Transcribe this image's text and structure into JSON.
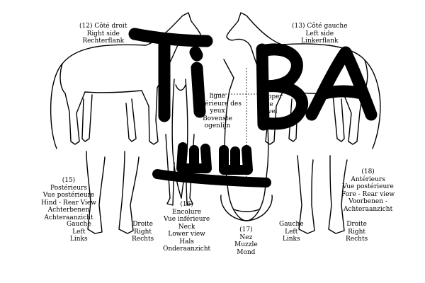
{
  "labels": {
    "right_side": {
      "num": "(12)",
      "fr": "Côté droit",
      "en": "Right side",
      "nl": "Rechterflank"
    },
    "left_side": {
      "num": "(13)",
      "fr": "Côté gauche",
      "en": "Left side",
      "nl": "Linkerflank"
    },
    "eye_level_nl": {
      "fr": "ligne supérieure des yeux",
      "nl": "Bovenste ogenlijn"
    },
    "eye_level_en": {
      "line1": "Upper",
      "line2": "eye",
      "line3": "level"
    },
    "hind": {
      "num": "(15)",
      "fr1": "Postérieurs",
      "fr2": "Vue postérieure",
      "en": "Hind - Rear View",
      "nl1": "Achterbenen",
      "nl2": "Achteraanzicht"
    },
    "hind_left": {
      "fr": "Gauche",
      "en": "Left",
      "nl": "Links"
    },
    "hind_right": {
      "fr": "Droite",
      "en": "Right",
      "nl": "Rechts"
    },
    "neck": {
      "num": "(16)",
      "fr1": "Encolure",
      "fr2": "Vue inférieure",
      "en1": "Neck",
      "en2": "Lower view",
      "nl1": "Hals",
      "nl2": "Onderaanzicht"
    },
    "muzzle": {
      "num": "(17)",
      "fr": "Nez",
      "en": "Muzzle",
      "nl": "Mond"
    },
    "fore": {
      "num": "(18)",
      "fr1": "Antérieurs",
      "fr2": "Vue postérieure",
      "en": "Fore - Rear view",
      "nl1": "Voorbenen -",
      "nl2": "Achteraanzicht"
    },
    "fore_left": {
      "fr": "Gauche",
      "en": "Left",
      "nl": "Links"
    },
    "fore_right": {
      "fr": "Droite",
      "en": "Right",
      "nl": "Rechts"
    }
  },
  "handwriting": {
    "letters": "TiBA",
    "mark": "ш"
  }
}
